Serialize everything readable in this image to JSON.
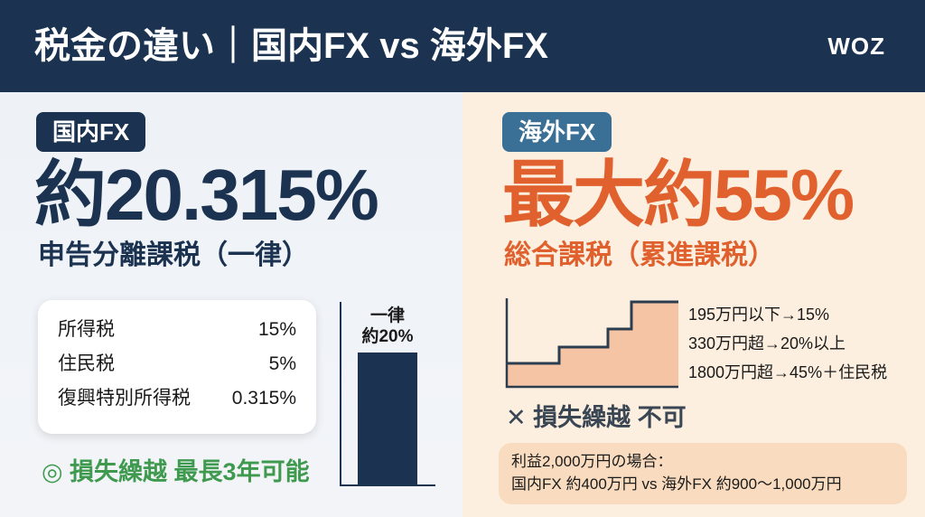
{
  "header": {
    "title": "税金の違い｜国内FX vs 海外FX",
    "logo": "WOZ"
  },
  "domestic": {
    "badge": "国内FX",
    "rate": "約20.315%",
    "method": "申告分離課税（一律）",
    "breakdown": [
      {
        "label": "所得税",
        "value": "15%"
      },
      {
        "label": "住民税",
        "value": "5%"
      },
      {
        "label": "復興特別所得税",
        "value": "0.315%"
      }
    ],
    "bar_label_1": "一律",
    "bar_label_2": "約20%",
    "loss_carryforward": "◎ 損失繰越 最長3年可能",
    "color": "#1b3350"
  },
  "overseas": {
    "badge": "海外FX",
    "rate": "最大約55%",
    "method": "総合課税（累進課税）",
    "brackets": [
      "195万円以下→15%",
      "330万円超→20%以上",
      "1800万円超→45%＋住民税"
    ],
    "loss_carryforward": "✕ 損失繰越 不可",
    "example_title": "利益2,000万円の場合：",
    "example_body": "国内FX 約400万円 vs 海外FX 約900〜1,000万円",
    "color": "#e0612e",
    "badge_color": "#3a6f96"
  }
}
